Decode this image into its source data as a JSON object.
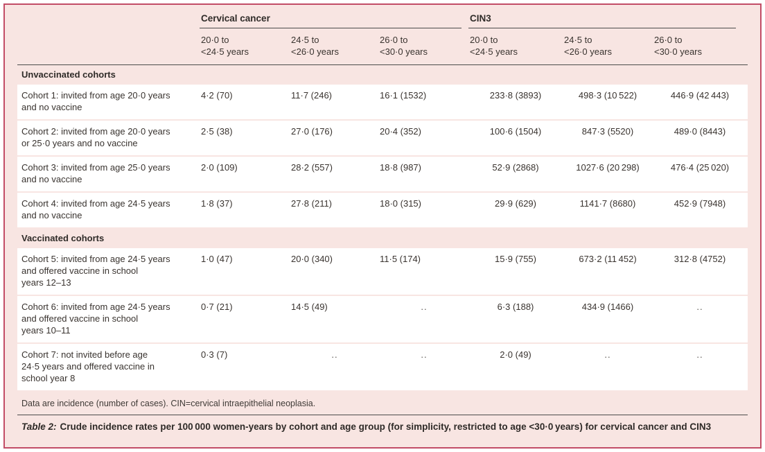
{
  "colors": {
    "frame_border": "#c24c66",
    "background_pink": "#f8e5e2",
    "row_background": "#ffffff",
    "rule": "#4b4b4b",
    "text": "#39332f"
  },
  "table": {
    "col_groups": [
      {
        "label": "Cervical cancer",
        "span": 3
      },
      {
        "label": "CIN3",
        "span": 3
      }
    ],
    "age_columns": [
      "20·0 to\n<24·5 years",
      "24·5 to\n<26·0 years",
      "26·0 to\n<30·0 years",
      "20·0 to\n<24·5 years",
      "24·5 to\n<26·0 years",
      "26·0 to\n<30·0 years"
    ],
    "sections": [
      {
        "title": "Unvaccinated cohorts",
        "rows": [
          {
            "label": "Cohort 1: invited from age 20·0 years\nand no vaccine",
            "values": [
              "4·2 (70)",
              "11·7 (246)",
              "16·1 (1532)",
              "233·8 (3893)",
              "498·3 (10 522)",
              "446·9 (42 443)"
            ]
          },
          {
            "label": "Cohort 2: invited from age 20·0 years\nor 25·0 years and no vaccine",
            "values": [
              "2·5 (38)",
              "27·0 (176)",
              "20·4 (352)",
              "100·6 (1504)",
              "847·3 (5520)",
              "489·0 (8443)"
            ]
          },
          {
            "label": "Cohort 3: invited from age 25·0 years\nand no vaccine",
            "values": [
              "2·0 (109)",
              "28·2 (557)",
              "18·8 (987)",
              "52·9 (2868)",
              "1027·6 (20 298)",
              "476·4 (25 020)"
            ]
          },
          {
            "label": "Cohort 4: invited from age 24·5 years\nand no vaccine",
            "values": [
              "1·8 (37)",
              "27·8 (211)",
              "18·0 (315)",
              "29·9 (629)",
              "1141·7 (8680)",
              "452·9 (7948)"
            ]
          }
        ]
      },
      {
        "title": "Vaccinated cohorts",
        "rows": [
          {
            "label": "Cohort 5: invited from age 24·5 years\nand offered vaccine in school\nyears 12–13",
            "values": [
              "1·0 (47)",
              "20·0 (340)",
              "11·5 (174)",
              "15·9 (755)",
              "673·2 (11 452)",
              "312·8 (4752)"
            ]
          },
          {
            "label": "Cohort 6: invited from age 24·5 years\nand offered vaccine in school\nyears 10–11",
            "values": [
              "0·7 (21)",
              "14·5 (49)",
              "..",
              "6·3 (188)",
              "434·9 (1466)",
              ".."
            ]
          },
          {
            "label": "Cohort 7: not invited before age\n24·5 years and offered vaccine in\nschool year 8",
            "values": [
              "0·3 (7)",
              "..",
              "..",
              "2·0 (49)",
              "..",
              ".."
            ]
          }
        ]
      }
    ],
    "footnote": "Data are incidence (number of cases). CIN=cervical intraepithelial neoplasia.",
    "caption_prefix": "Table 2:",
    "caption_text": "Crude incidence rates per 100 000 women-years by cohort and age group (for simplicity, restricted to age <30·0 years) for cervical cancer and CIN3"
  }
}
